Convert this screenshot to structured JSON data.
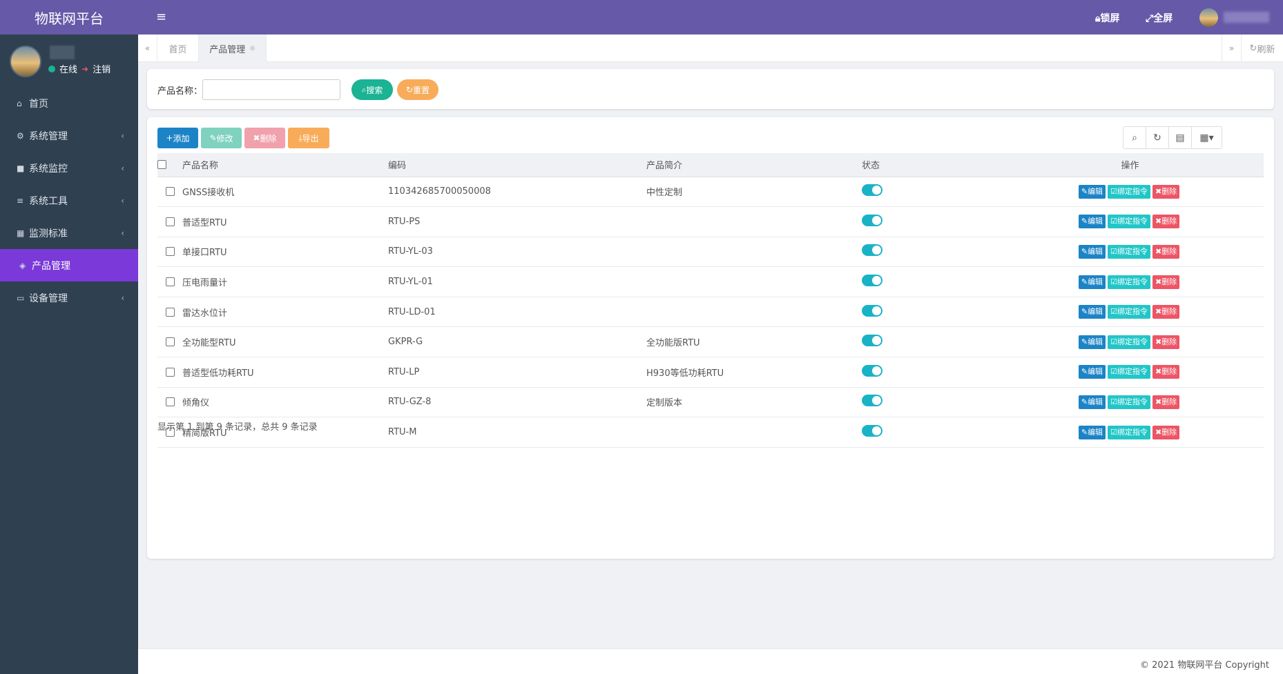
{
  "app": {
    "title": "物联网平台"
  },
  "user": {
    "status_label": "在线",
    "logout_label": "注销"
  },
  "sidebar": {
    "items": [
      {
        "label": "首页",
        "icon": "home-icon"
      },
      {
        "label": "系统管理",
        "icon": "gear-icon"
      },
      {
        "label": "系统监控",
        "icon": "video-icon"
      },
      {
        "label": "系统工具",
        "icon": "bars-icon"
      },
      {
        "label": "监测标准",
        "icon": "book-icon"
      },
      {
        "label": "产品管理",
        "icon": "cube-icon"
      },
      {
        "label": "设备管理",
        "icon": "hdd-icon"
      }
    ],
    "active_index": 5
  },
  "header": {
    "lock_label": "锁屏",
    "fullscreen_label": "全屏"
  },
  "tabs": {
    "home_label": "首页",
    "active_label": "产品管理",
    "refresh_label": "刷新"
  },
  "search": {
    "label": "产品名称：",
    "value": "",
    "search_button": "搜索",
    "reset_button": "重置"
  },
  "toolbar": {
    "add_label": "添加",
    "edit_label": "修改",
    "delete_label": "删除",
    "export_label": "导出"
  },
  "table": {
    "columns": [
      "产品名称",
      "编码",
      "产品简介",
      "状态",
      "操作"
    ],
    "rows": [
      {
        "name": "GNSS接收机",
        "code": "110342685700050008",
        "desc": "中性定制",
        "enabled": true
      },
      {
        "name": "普适型RTU",
        "code": "RTU-PS",
        "desc": "",
        "enabled": true
      },
      {
        "name": "单接口RTU",
        "code": "RTU-YL-03",
        "desc": "",
        "enabled": true
      },
      {
        "name": "压电雨量计",
        "code": "RTU-YL-01",
        "desc": "",
        "enabled": true
      },
      {
        "name": "雷达水位计",
        "code": "RTU-LD-01",
        "desc": "",
        "enabled": true
      },
      {
        "name": "全功能型RTU",
        "code": "GKPR-G",
        "desc": "全功能版RTU",
        "enabled": true
      },
      {
        "name": "普适型低功耗RTU",
        "code": "RTU-LP",
        "desc": "H930等低功耗RTU",
        "enabled": true
      },
      {
        "name": "倾角仪",
        "code": "RTU-GZ-8",
        "desc": "定制版本",
        "enabled": true
      },
      {
        "name": "精简版RTU",
        "code": "RTU-M",
        "desc": "",
        "enabled": true
      }
    ],
    "op_edit": "编辑",
    "op_bind": "绑定指令",
    "op_delete": "删除"
  },
  "pager": {
    "text": "显示第 1 到第 9 条记录，总共 9 条记录"
  },
  "footer": {
    "copyright": "© 2021 物联网平台 Copyright"
  },
  "colors": {
    "header_bg": "#6659a8",
    "sidebar_bg": "#2f4050",
    "active_menu_bg": "#7a39d8",
    "primary": "#1c84c6",
    "success": "#1ab394",
    "warning": "#f8ac59",
    "danger": "#ed5565",
    "info": "#23c6c8"
  }
}
